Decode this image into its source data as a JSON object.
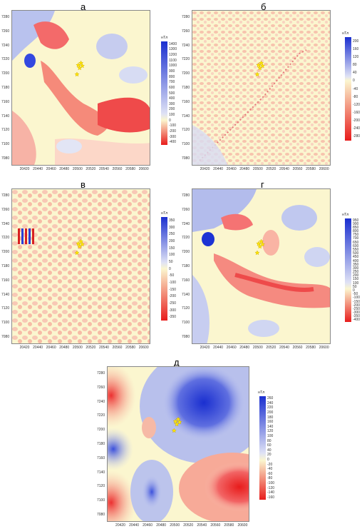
{
  "chart_data": [
    {
      "type": "heatmap",
      "title": "а",
      "xlabel": "",
      "ylabel": "",
      "x_ticks": [
        "20420",
        "20440",
        "20460",
        "20480",
        "20500",
        "20520",
        "20540",
        "20560",
        "20580",
        "20600"
      ],
      "y_ticks": [
        "7280",
        "7260",
        "7240",
        "7220",
        "7200",
        "7180",
        "7160",
        "7140",
        "7120",
        "7100",
        "7080"
      ],
      "xlim": [
        20400,
        20610
      ],
      "ylim": [
        7070,
        7290
      ],
      "colorbar_unit": "нТл",
      "colorbar_ticks": [
        "1400",
        "1300",
        "1200",
        "1100",
        "1000",
        "900",
        "800",
        "700",
        "600",
        "500",
        "400",
        "300",
        "200",
        "100",
        "0",
        "-100",
        "-200",
        "-300",
        "-400"
      ],
      "markers": "yellow stars near 20500, 7200–7215",
      "colors": {
        "positive": "#1a2fd0",
        "neutral": "#fbf6cf",
        "negative": "#e81c1c"
      }
    },
    {
      "type": "heatmap",
      "title": "б",
      "xlabel": "",
      "ylabel": "",
      "x_ticks": [
        "20420",
        "20440",
        "20460",
        "20480",
        "20500",
        "20520",
        "20540",
        "20560",
        "20580",
        "20600"
      ],
      "y_ticks": [
        "7280",
        "7260",
        "7240",
        "7220",
        "7200",
        "7180",
        "7160",
        "7140",
        "7120",
        "7100",
        "7080"
      ],
      "xlim": [
        20400,
        20610
      ],
      "ylim": [
        7070,
        7290
      ],
      "colorbar_unit": "нТл",
      "colorbar_ticks": [
        "200",
        "160",
        "120",
        "80",
        "40",
        "0",
        "-40",
        "-80",
        "-120",
        "-160",
        "-200",
        "-240",
        "-280"
      ]
    },
    {
      "type": "heatmap",
      "title": "в",
      "xlabel": "",
      "ylabel": "",
      "x_ticks": [
        "20420",
        "20440",
        "20460",
        "20480",
        "20500",
        "20520",
        "20540",
        "20560",
        "20580",
        "20600"
      ],
      "y_ticks": [
        "7280",
        "7260",
        "7240",
        "7220",
        "7200",
        "7180",
        "7160",
        "7140",
        "7120",
        "7100",
        "7080"
      ],
      "xlim": [
        20400,
        20610
      ],
      "ylim": [
        7070,
        7290
      ],
      "colorbar_unit": "нТл",
      "colorbar_ticks": [
        "350",
        "300",
        "250",
        "200",
        "150",
        "100",
        "50",
        "0",
        "-50",
        "-100",
        "-150",
        "-200",
        "-250",
        "-300",
        "-350"
      ]
    },
    {
      "type": "heatmap",
      "title": "г",
      "xlabel": "",
      "ylabel": "",
      "x_ticks": [
        "20420",
        "20440",
        "20460",
        "20480",
        "20500",
        "20520",
        "20540",
        "20560",
        "20580",
        "20600"
      ],
      "y_ticks": [
        "7280",
        "7260",
        "7240",
        "7220",
        "7200",
        "7180",
        "7160",
        "7140",
        "7120",
        "7100",
        "7080"
      ],
      "xlim": [
        20400,
        20610
      ],
      "ylim": [
        7070,
        7290
      ],
      "colorbar_unit": "нТл",
      "colorbar_ticks": [
        "950",
        "900",
        "850",
        "800",
        "750",
        "700",
        "650",
        "600",
        "550",
        "500",
        "450",
        "400",
        "350",
        "300",
        "250",
        "200",
        "150",
        "100",
        "50",
        "0",
        "-50",
        "-100",
        "-150",
        "-200",
        "-250",
        "-300",
        "-350",
        "-400"
      ]
    },
    {
      "type": "heatmap",
      "title": "д",
      "xlabel": "",
      "ylabel": "",
      "x_ticks": [
        "20420",
        "20440",
        "20460",
        "20480",
        "20500",
        "20520",
        "20540",
        "20560",
        "20580",
        "20600"
      ],
      "y_ticks": [
        "7280",
        "7260",
        "7240",
        "7220",
        "7200",
        "7180",
        "7160",
        "7140",
        "7120",
        "7100",
        "7080"
      ],
      "xlim": [
        20400,
        20610
      ],
      "ylim": [
        7070,
        7290
      ],
      "colorbar_unit": "нТл",
      "colorbar_ticks": [
        "260",
        "240",
        "220",
        "200",
        "180",
        "160",
        "140",
        "120",
        "100",
        "80",
        "60",
        "40",
        "20",
        "0",
        "-20",
        "-40",
        "-60",
        "-80",
        "-100",
        "-120",
        "-140",
        "-160"
      ]
    }
  ]
}
